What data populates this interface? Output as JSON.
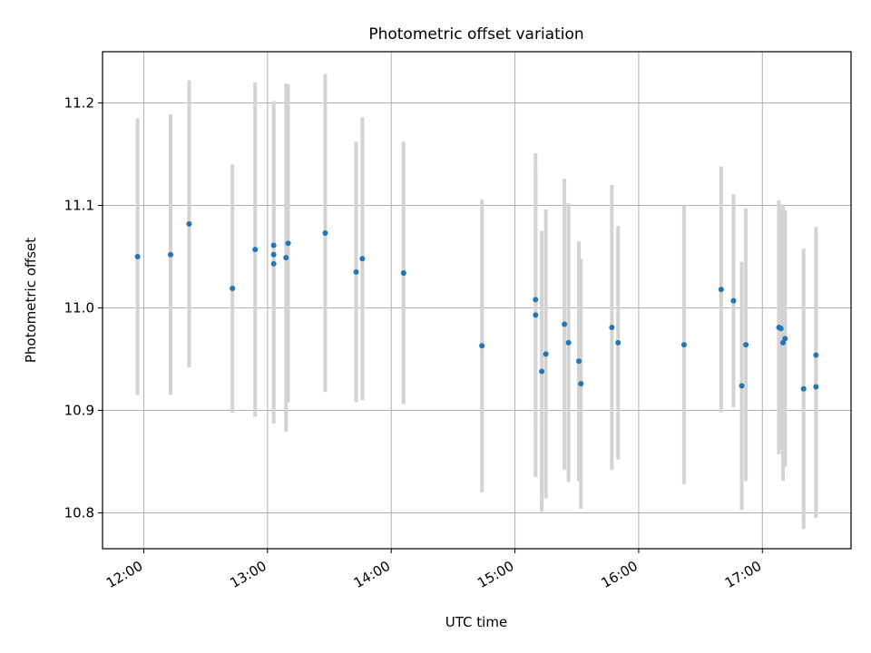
{
  "chart_data": {
    "type": "scatter",
    "title": "Photometric offset variation",
    "xlabel": "UTC time",
    "ylabel": "Photometric offset",
    "x_tick_labels": [
      "12:00",
      "13:00",
      "14:00",
      "15:00",
      "16:00",
      "17:00"
    ],
    "y_tick_labels": [
      "10.8",
      "10.9",
      "11.0",
      "11.1",
      "11.2"
    ],
    "xlim": [
      "11:40",
      "17:43"
    ],
    "ylim": [
      10.765,
      11.25
    ],
    "grid": true,
    "colors": {
      "point": "#1f77b4",
      "errorbar": "#d3d3d3",
      "grid": "#b0b0b0"
    },
    "series": [
      {
        "points": [
          {
            "x": "11:57",
            "y": 11.05,
            "yerr": 0.135
          },
          {
            "x": "12:13",
            "y": 11.052,
            "yerr": 0.137
          },
          {
            "x": "12:22",
            "y": 11.082,
            "yerr": 0.14
          },
          {
            "x": "12:43",
            "y": 11.019,
            "yerr": 0.121
          },
          {
            "x": "12:54",
            "y": 11.057,
            "yerr": 0.163
          },
          {
            "x": "13:03",
            "y": 11.043,
            "yerr": 0.156
          },
          {
            "x": "13:03",
            "y": 11.052,
            "yerr": 0.15
          },
          {
            "x": "13:03",
            "y": 11.061,
            "yerr": 0.14
          },
          {
            "x": "13:09",
            "y": 11.049,
            "yerr": 0.17
          },
          {
            "x": "13:10",
            "y": 11.063,
            "yerr": 0.155
          },
          {
            "x": "13:28",
            "y": 11.073,
            "yerr": 0.155
          },
          {
            "x": "13:43",
            "y": 11.035,
            "yerr": 0.127
          },
          {
            "x": "13:46",
            "y": 11.048,
            "yerr": 0.138
          },
          {
            "x": "14:06",
            "y": 11.034,
            "yerr": 0.128
          },
          {
            "x": "14:44",
            "y": 10.963,
            "yerr": 0.143
          },
          {
            "x": "15:10",
            "y": 10.993,
            "yerr": 0.158
          },
          {
            "x": "15:10",
            "y": 11.008,
            "yerr": 0.125
          },
          {
            "x": "15:13",
            "y": 10.938,
            "yerr": 0.137
          },
          {
            "x": "15:15",
            "y": 10.955,
            "yerr": 0.141
          },
          {
            "x": "15:24",
            "y": 10.984,
            "yerr": 0.142
          },
          {
            "x": "15:26",
            "y": 10.966,
            "yerr": 0.136
          },
          {
            "x": "15:31",
            "y": 10.948,
            "yerr": 0.117
          },
          {
            "x": "15:32",
            "y": 10.926,
            "yerr": 0.122
          },
          {
            "x": "15:47",
            "y": 10.981,
            "yerr": 0.139
          },
          {
            "x": "15:50",
            "y": 10.966,
            "yerr": 0.114
          },
          {
            "x": "16:22",
            "y": 10.964,
            "yerr": 0.136
          },
          {
            "x": "16:40",
            "y": 11.018,
            "yerr": 0.12
          },
          {
            "x": "16:46",
            "y": 11.007,
            "yerr": 0.104
          },
          {
            "x": "16:50",
            "y": 10.924,
            "yerr": 0.121
          },
          {
            "x": "16:52",
            "y": 10.964,
            "yerr": 0.133
          },
          {
            "x": "17:08",
            "y": 10.981,
            "yerr": 0.124
          },
          {
            "x": "17:09",
            "y": 10.98,
            "yerr": 0.118
          },
          {
            "x": "17:10",
            "y": 10.966,
            "yerr": 0.135
          },
          {
            "x": "17:11",
            "y": 10.97,
            "yerr": 0.125
          },
          {
            "x": "17:20",
            "y": 10.921,
            "yerr": 0.137
          },
          {
            "x": "17:26",
            "y": 10.954,
            "yerr": 0.125
          },
          {
            "x": "17:26",
            "y": 10.923,
            "yerr": 0.128
          }
        ]
      }
    ]
  }
}
